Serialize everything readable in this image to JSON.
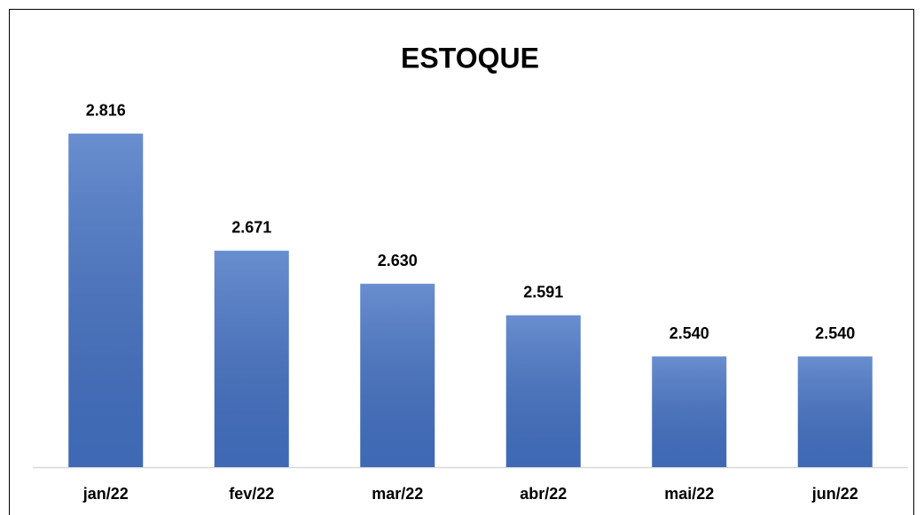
{
  "chart_data": {
    "type": "bar",
    "title": "ESTOQUE",
    "categories": [
      "jan/22",
      "fev/22",
      "mar/22",
      "abr/22",
      "mai/22",
      "jun/22"
    ],
    "values": [
      2816,
      2671,
      2630,
      2591,
      2540,
      2540
    ],
    "value_labels": [
      "2.816",
      "2.671",
      "2.630",
      "2.591",
      "2.540",
      "2.540"
    ],
    "color": "#4472c4",
    "ylim": [
      2403,
      2853
    ]
  }
}
